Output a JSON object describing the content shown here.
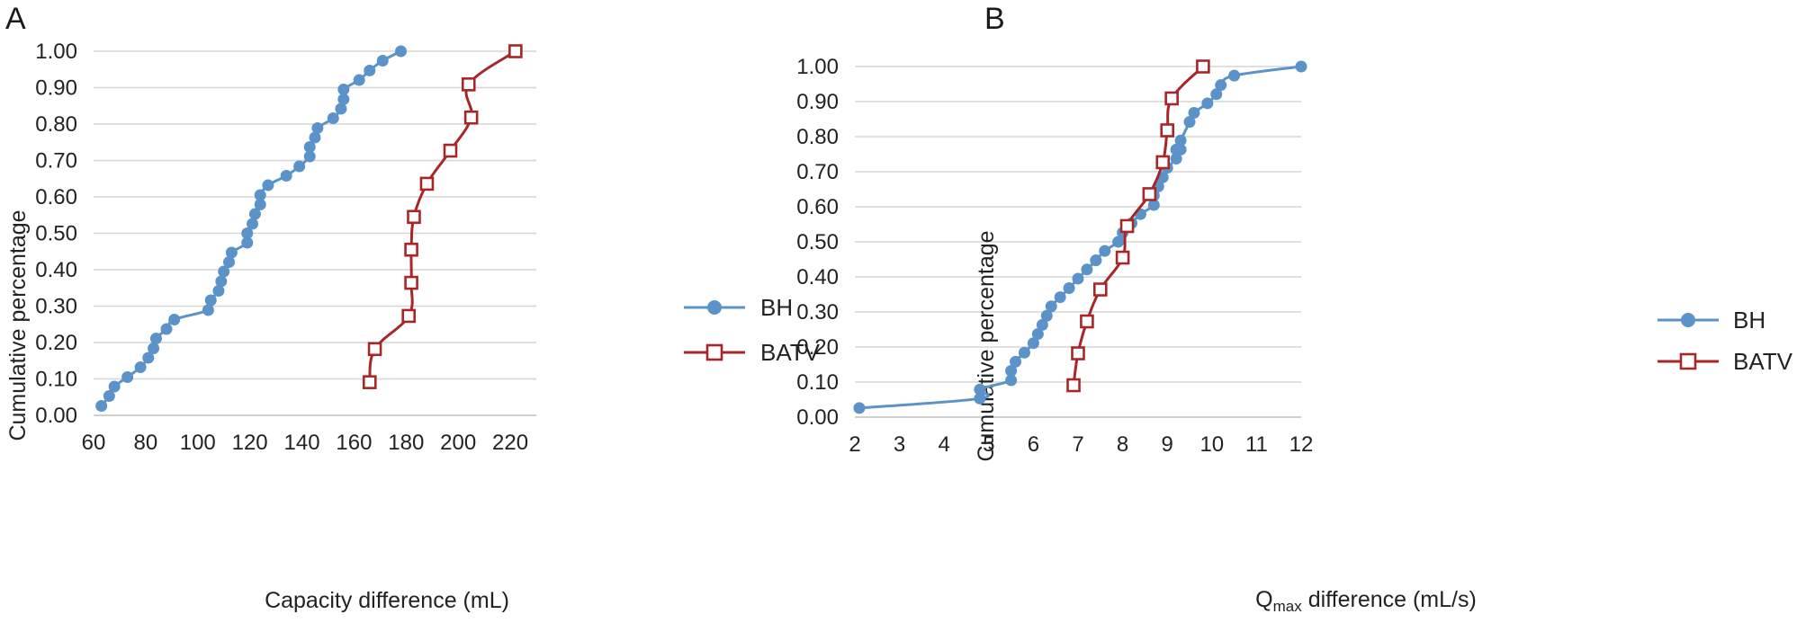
{
  "chart_data": [
    {
      "type": "line",
      "panel_label": "A",
      "xlabel": "Capacity difference (mL)",
      "ylabel": "Cumulative percentage",
      "xlim": [
        60,
        230
      ],
      "ylim": [
        0,
        1
      ],
      "xticks": [
        "60",
        "80",
        "100",
        "120",
        "140",
        "160",
        "180",
        "200",
        "220"
      ],
      "yticks": [
        "0.00",
        "0.10",
        "0.20",
        "0.30",
        "0.40",
        "0.50",
        "0.60",
        "0.70",
        "0.80",
        "0.90",
        "1.00"
      ],
      "grid": true,
      "legend_position": "right",
      "series": [
        {
          "name": "BH",
          "color": "#5b93c9",
          "marker": "circle",
          "x": [
            63,
            66,
            68,
            73,
            78,
            81,
            83,
            84,
            88,
            91,
            104,
            105,
            108,
            109,
            110,
            112,
            113,
            119,
            119,
            121,
            122,
            124,
            124,
            127,
            134,
            139,
            143,
            143,
            145,
            146,
            152,
            155,
            156,
            156,
            162,
            166,
            171,
            178
          ],
          "y": [
            0.026,
            0.053,
            0.079,
            0.105,
            0.132,
            0.158,
            0.184,
            0.211,
            0.237,
            0.263,
            0.289,
            0.316,
            0.342,
            0.368,
            0.395,
            0.421,
            0.447,
            0.474,
            0.5,
            0.526,
            0.553,
            0.579,
            0.605,
            0.632,
            0.658,
            0.684,
            0.711,
            0.737,
            0.763,
            0.789,
            0.816,
            0.842,
            0.868,
            0.895,
            0.921,
            0.947,
            0.974,
            1.0
          ]
        },
        {
          "name": "BATV",
          "color": "#a82528",
          "marker": "square-open",
          "x": [
            166,
            168,
            181,
            182,
            182,
            183,
            188,
            197,
            205,
            204,
            222
          ],
          "y": [
            0.091,
            0.182,
            0.273,
            0.364,
            0.455,
            0.545,
            0.636,
            0.727,
            0.818,
            0.909,
            1.0
          ]
        }
      ]
    },
    {
      "type": "line",
      "panel_label": "B",
      "xlabel_main": "Q",
      "xlabel_sub": "max",
      "xlabel_rest": " difference (mL/s)",
      "ylabel": "Cumulative percentage",
      "xlim": [
        2,
        12
      ],
      "ylim": [
        0,
        1
      ],
      "xticks": [
        "2",
        "3",
        "4",
        "5",
        "6",
        "7",
        "8",
        "9",
        "10",
        "11",
        "12"
      ],
      "yticks": [
        "0.00",
        "0.10",
        "0.20",
        "0.30",
        "0.40",
        "0.50",
        "0.60",
        "0.70",
        "0.80",
        "0.90",
        "1.00"
      ],
      "grid": true,
      "legend_position": "right",
      "series": [
        {
          "name": "BH",
          "color": "#5b93c9",
          "marker": "circle",
          "x": [
            2.1,
            4.8,
            4.8,
            5.5,
            5.5,
            5.6,
            5.8,
            6.0,
            6.1,
            6.2,
            6.3,
            6.4,
            6.6,
            6.8,
            7.0,
            7.2,
            7.4,
            7.4,
            7.6,
            7.9,
            8.0,
            8.2,
            8.4,
            8.7,
            8.7,
            8.8,
            8.9,
            9.0,
            9.2,
            9.3,
            9.3,
            9.2,
            9.5,
            9.6,
            9.9,
            10.1,
            10.2,
            10.5,
            12.0
          ],
          "y": [
            0.026,
            0.053,
            0.079,
            0.105,
            0.132,
            0.158,
            0.184,
            0.211,
            0.237,
            0.263,
            0.289,
            0.316,
            0.342,
            0.368,
            0.395,
            0.421,
            0.447,
            0.447,
            0.474,
            0.5,
            0.526,
            0.553,
            0.579,
            0.605,
            0.632,
            0.658,
            0.684,
            0.711,
            0.737,
            0.763,
            0.789,
            0.763,
            0.842,
            0.868,
            0.895,
            0.921,
            0.947,
            0.974,
            1.0
          ]
        },
        {
          "name": "BATV",
          "color": "#a82528",
          "marker": "square-open",
          "x": [
            6.9,
            7.0,
            7.2,
            7.5,
            8.0,
            8.1,
            8.6,
            8.9,
            9.0,
            9.1,
            9.8
          ],
          "y": [
            0.091,
            0.182,
            0.273,
            0.364,
            0.455,
            0.545,
            0.636,
            0.727,
            0.818,
            0.909,
            1.0
          ]
        }
      ]
    }
  ]
}
